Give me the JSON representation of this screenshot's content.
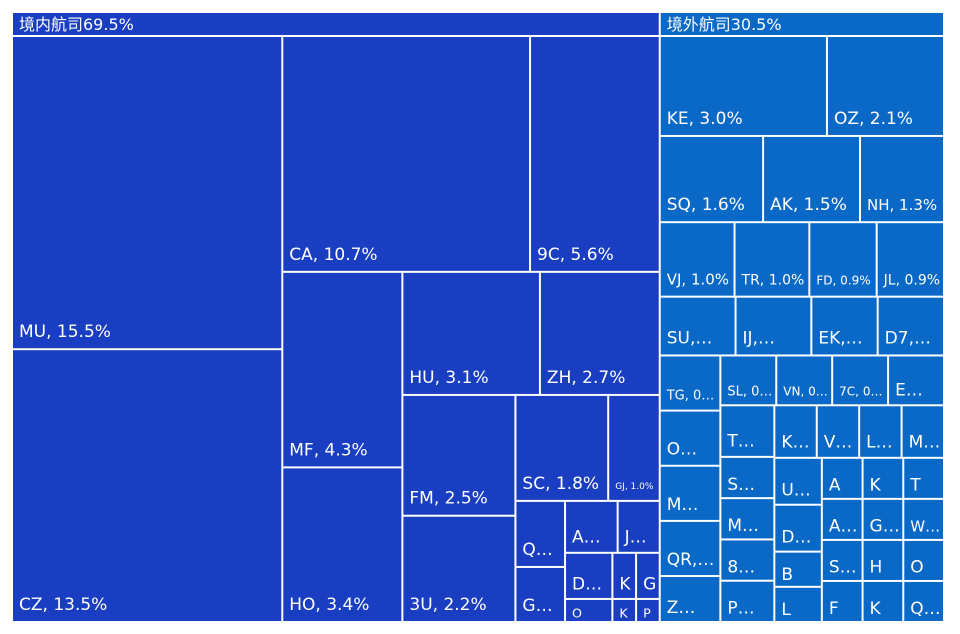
{
  "chart_data": {
    "type": "treemap",
    "groups": [
      {
        "name": "境内航司",
        "value": 69.5,
        "label": "境内航司69.5%",
        "color": "#1a3ec2",
        "items": [
          {
            "name": "MU",
            "value": 15.5,
            "label": "MU, 15.5%"
          },
          {
            "name": "CZ",
            "value": 13.5,
            "label": "CZ, 13.5%"
          },
          {
            "name": "CA",
            "value": 10.7,
            "label": "CA, 10.7%"
          },
          {
            "name": "9C",
            "value": 5.6,
            "label": "9C, 5.6%"
          },
          {
            "name": "MF",
            "value": 4.3,
            "label": "MF, 4.3%"
          },
          {
            "name": "HO",
            "value": 3.4,
            "label": "HO, 3.4%"
          },
          {
            "name": "HU",
            "value": 3.1,
            "label": "HU, 3.1%"
          },
          {
            "name": "ZH",
            "value": 2.7,
            "label": "ZH, 2.7%"
          },
          {
            "name": "FM",
            "value": 2.5,
            "label": "FM, 2.5%"
          },
          {
            "name": "3U",
            "value": 2.2,
            "label": "3U, 2.2%"
          },
          {
            "name": "SC",
            "value": 1.8,
            "label": "SC, 1.8%"
          },
          {
            "name": "GJ",
            "value": 1.0,
            "label": "GJ, 1.0%"
          },
          {
            "name": "Q",
            "value": 0.6,
            "label": "Q…"
          },
          {
            "name": "G",
            "value": 0.5,
            "label": "G…"
          },
          {
            "name": "A",
            "value": 0.5,
            "label": "A…"
          },
          {
            "name": "J",
            "value": 0.4,
            "label": "J…"
          },
          {
            "name": "D",
            "value": 0.4,
            "label": "D…"
          },
          {
            "name": "O",
            "value": 0.2,
            "label": "O"
          },
          {
            "name": "K",
            "value": 0.2,
            "label": "K"
          },
          {
            "name": "G",
            "value": 0.2,
            "label": "G"
          },
          {
            "name": "K",
            "value": 0.1,
            "label": "K"
          },
          {
            "name": "P",
            "value": 0.1,
            "label": "P"
          }
        ]
      },
      {
        "name": "境外航司",
        "value": 30.5,
        "label": "境外航司30.5%",
        "color": "#0a68c6",
        "items": [
          {
            "name": "KE",
            "value": 3.0,
            "label": "KE, 3.0%"
          },
          {
            "name": "OZ",
            "value": 2.1,
            "label": "OZ, 2.1%"
          },
          {
            "name": "SQ",
            "value": 1.6,
            "label": "SQ, 1.6%"
          },
          {
            "name": "AK",
            "value": 1.5,
            "label": "AK, 1.5%"
          },
          {
            "name": "NH",
            "value": 1.3,
            "label": "NH, 1.3%"
          },
          {
            "name": "VJ",
            "value": 1.0,
            "label": "VJ, 1.0%"
          },
          {
            "name": "TR",
            "value": 1.0,
            "label": "TR, 1.0%"
          },
          {
            "name": "FD",
            "value": 0.9,
            "label": "FD, 0.9%"
          },
          {
            "name": "JL",
            "value": 0.9,
            "label": "JL, 0.9%"
          },
          {
            "name": "SU",
            "value": 0.8,
            "label": "SU,…"
          },
          {
            "name": "IJ",
            "value": 0.8,
            "label": "IJ,…"
          },
          {
            "name": "EK",
            "value": 0.7,
            "label": "EK,…"
          },
          {
            "name": "D7",
            "value": 0.7,
            "label": "D7,…"
          },
          {
            "name": "TG",
            "value": 0.6,
            "label": "TG, 0…"
          },
          {
            "name": "O",
            "value": 0.6,
            "label": "O…"
          },
          {
            "name": "M",
            "value": 0.6,
            "label": "M…"
          },
          {
            "name": "QR",
            "value": 0.6,
            "label": "QR,…"
          },
          {
            "name": "Z",
            "value": 0.5,
            "label": "Z…"
          },
          {
            "name": "SL",
            "value": 0.5,
            "label": "SL, 0…"
          },
          {
            "name": "VN",
            "value": 0.5,
            "label": "VN, 0…"
          },
          {
            "name": "7C",
            "value": 0.5,
            "label": "7C, 0…"
          },
          {
            "name": "E",
            "value": 0.5,
            "label": "E…"
          },
          {
            "name": "T",
            "value": 0.5,
            "label": "T…"
          },
          {
            "name": "S",
            "value": 0.4,
            "label": "S…"
          },
          {
            "name": "M",
            "value": 0.4,
            "label": "M…"
          },
          {
            "name": "8",
            "value": 0.4,
            "label": "8…"
          },
          {
            "name": "P",
            "value": 0.4,
            "label": "P…"
          },
          {
            "name": "K",
            "value": 0.4,
            "label": "K…"
          },
          {
            "name": "V",
            "value": 0.4,
            "label": "V…"
          },
          {
            "name": "L",
            "value": 0.4,
            "label": "L…"
          },
          {
            "name": "M",
            "value": 0.4,
            "label": "M…"
          },
          {
            "name": "U",
            "value": 0.4,
            "label": "U…"
          },
          {
            "name": "D",
            "value": 0.4,
            "label": "D…"
          },
          {
            "name": "B",
            "value": 0.3,
            "label": "B"
          },
          {
            "name": "L",
            "value": 0.3,
            "label": "L"
          },
          {
            "name": "A",
            "value": 0.3,
            "label": "A"
          },
          {
            "name": "K",
            "value": 0.3,
            "label": "K"
          },
          {
            "name": "T",
            "value": 0.3,
            "label": "T"
          },
          {
            "name": "A",
            "value": 0.3,
            "label": "A…"
          },
          {
            "name": "G",
            "value": 0.3,
            "label": "G…"
          },
          {
            "name": "W",
            "value": 0.3,
            "label": "W…"
          },
          {
            "name": "S",
            "value": 0.3,
            "label": "S…"
          },
          {
            "name": "F",
            "value": 0.3,
            "label": "F"
          },
          {
            "name": "H",
            "value": 0.3,
            "label": "H"
          },
          {
            "name": "O",
            "value": 0.3,
            "label": "O"
          },
          {
            "name": "K",
            "value": 0.3,
            "label": "K"
          },
          {
            "name": "Q",
            "value": 0.3,
            "label": "Q…"
          }
        ]
      }
    ]
  }
}
